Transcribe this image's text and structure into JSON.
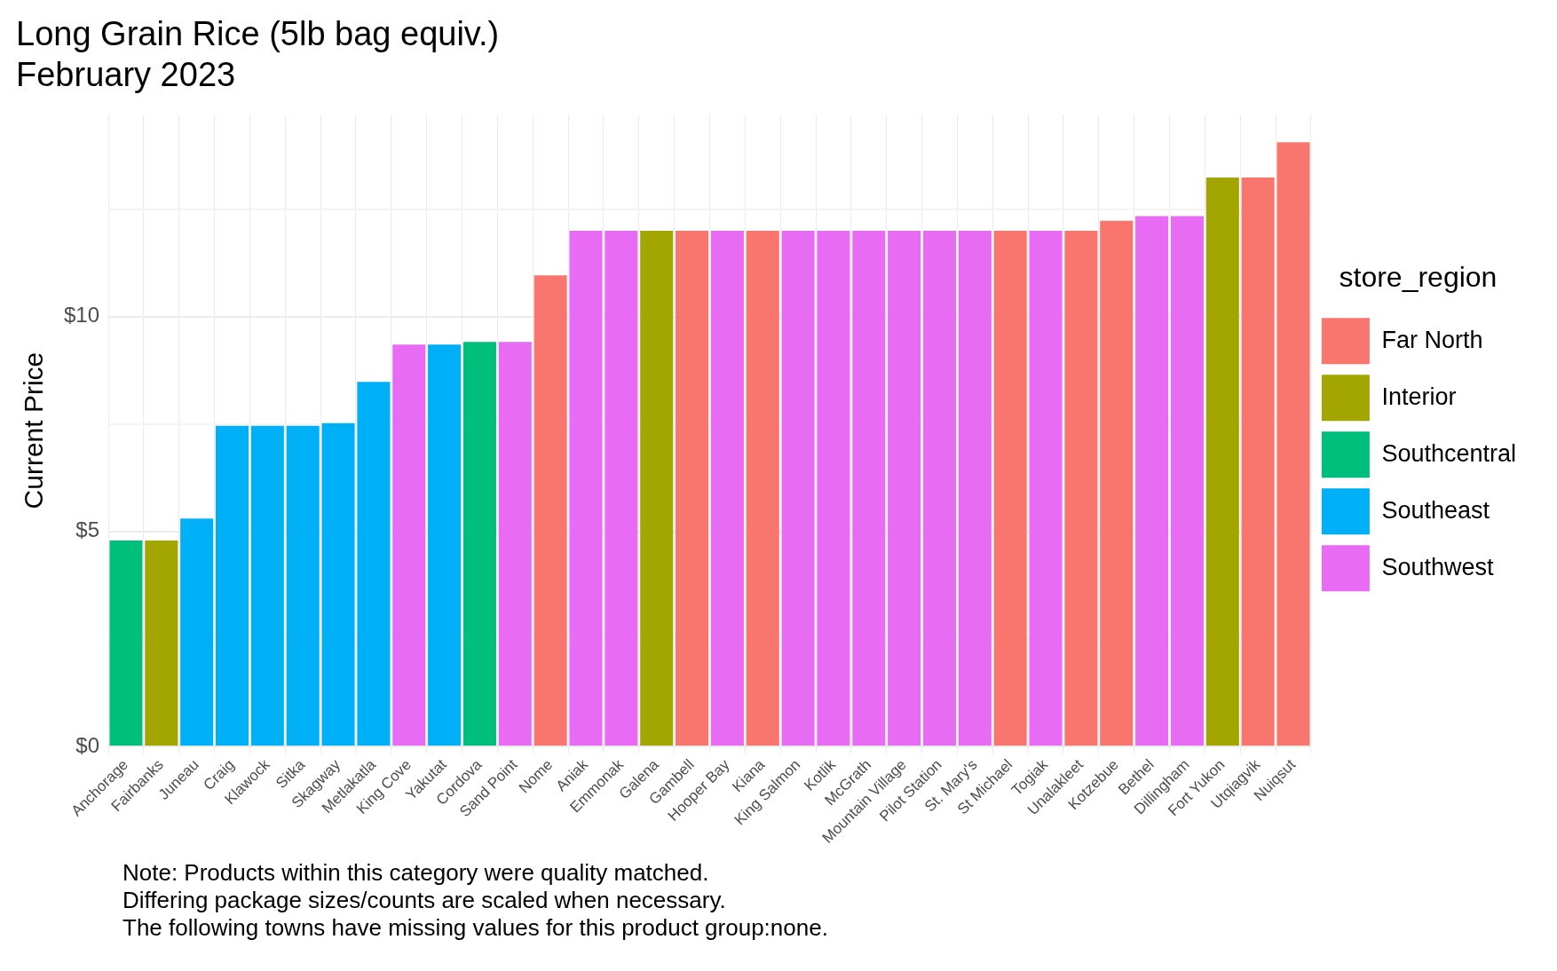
{
  "chart_data": {
    "type": "bar",
    "title": "Long Grain Rice (5lb bag equiv.)",
    "subtitle": "February 2023",
    "ylabel": "Current Price",
    "legend_title": "store_region",
    "categories": [
      "Anchorage",
      "Fairbanks",
      "Juneau",
      "Craig",
      "Klawock",
      "Sitka",
      "Skagway",
      "Metlakatla",
      "King Cove",
      "Yakutat",
      "Cordova",
      "Sand Point",
      "Nome",
      "Aniak",
      "Emmonak",
      "Galena",
      "Gambell",
      "Hooper Bay",
      "Kiana",
      "King Salmon",
      "Kotlik",
      "McGrath",
      "Mountain Village",
      "Pilot Station",
      "St. Mary's",
      "St Michael",
      "Togiak",
      "Unalakleet",
      "Kotzebue",
      "Bethel",
      "Dillingham",
      "Fort Yukon",
      "Utqiagvik",
      "Nuiqsut"
    ],
    "series": [
      {
        "name": "Far North",
        "color": "#f8766d",
        "values": [
          null,
          null,
          null,
          null,
          null,
          null,
          null,
          null,
          null,
          null,
          null,
          null,
          10.96,
          null,
          null,
          null,
          12,
          null,
          12,
          null,
          null,
          null,
          null,
          null,
          null,
          12,
          null,
          12,
          12.23,
          null,
          null,
          null,
          13.24,
          14.06
        ]
      },
      {
        "name": "Interior",
        "color": "#a3a500",
        "values": [
          null,
          4.79,
          null,
          null,
          null,
          null,
          null,
          null,
          null,
          null,
          null,
          null,
          null,
          null,
          null,
          12,
          null,
          null,
          null,
          null,
          null,
          null,
          null,
          null,
          null,
          null,
          null,
          null,
          null,
          null,
          null,
          13.24,
          null,
          null
        ]
      },
      {
        "name": "Southcentral",
        "color": "#00bf7d",
        "values": [
          4.79,
          null,
          null,
          null,
          null,
          null,
          null,
          null,
          null,
          null,
          9.41,
          null,
          null,
          null,
          null,
          null,
          null,
          null,
          null,
          null,
          null,
          null,
          null,
          null,
          null,
          null,
          null,
          null,
          null,
          null,
          null,
          null,
          null,
          null
        ]
      },
      {
        "name": "Southeast",
        "color": "#00b0f6",
        "values": [
          null,
          null,
          5.3,
          7.46,
          7.46,
          7.46,
          7.52,
          8.48,
          null,
          9.35,
          null,
          null,
          null,
          null,
          null,
          null,
          null,
          null,
          null,
          null,
          null,
          null,
          null,
          null,
          null,
          null,
          null,
          null,
          null,
          null,
          null,
          null,
          null,
          null
        ]
      },
      {
        "name": "Southwest",
        "color": "#e76bf3",
        "values": [
          null,
          null,
          null,
          null,
          null,
          null,
          null,
          null,
          9.35,
          null,
          null,
          9.41,
          null,
          12,
          12,
          null,
          null,
          12,
          null,
          12,
          12,
          12,
          12,
          12,
          12,
          null,
          12,
          null,
          null,
          12.34,
          12.34,
          null,
          null,
          null
        ]
      }
    ],
    "ylim": [
      0,
      14.7
    ],
    "yticks": [
      {
        "value": 0,
        "label": "$0"
      },
      {
        "value": 2.5,
        "label": null
      },
      {
        "value": 5,
        "label": "$5"
      },
      {
        "value": 7.5,
        "label": null
      },
      {
        "value": 10,
        "label": "$10"
      },
      {
        "value": 12.5,
        "label": null
      }
    ],
    "grid": true,
    "legend": "right",
    "annotations": [
      "Note: Products within this category were quality matched.",
      "Differing package sizes/counts are scaled when necessary.",
      "The following towns have missing values for this product group:none."
    ]
  }
}
